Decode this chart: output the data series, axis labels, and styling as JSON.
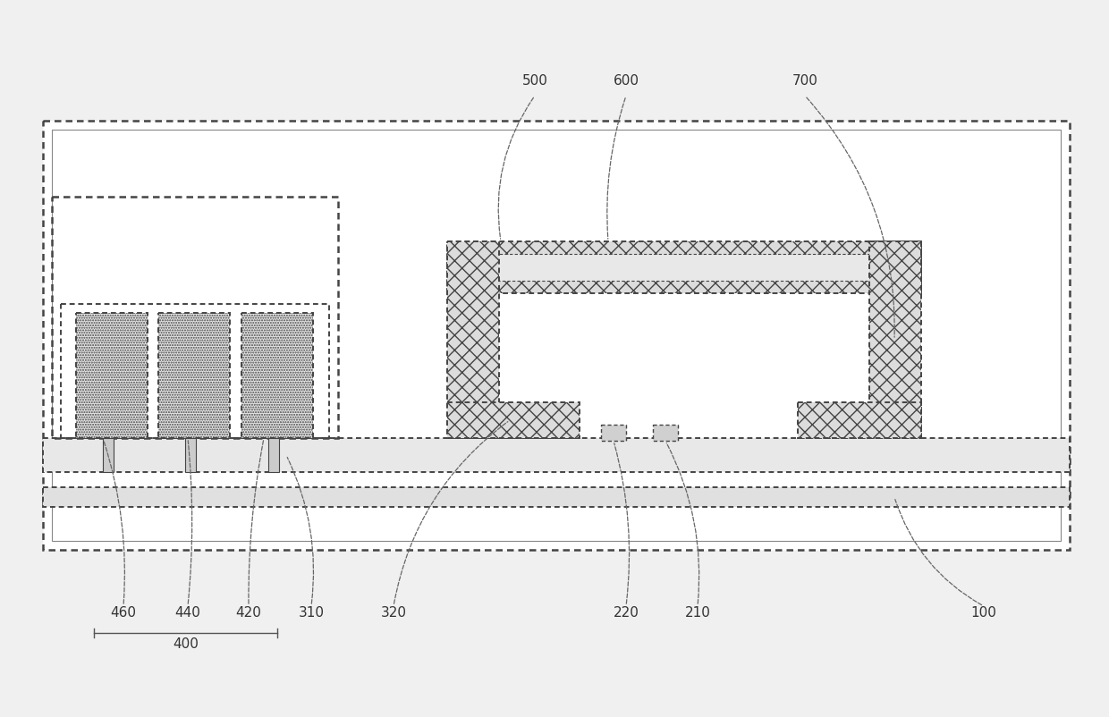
{
  "bg_color": "#f0f0f0",
  "ec": "#444444",
  "lw_outer": 1.8,
  "lw_inner": 1.4,
  "label_fs": 11,
  "label_color": "#333333"
}
